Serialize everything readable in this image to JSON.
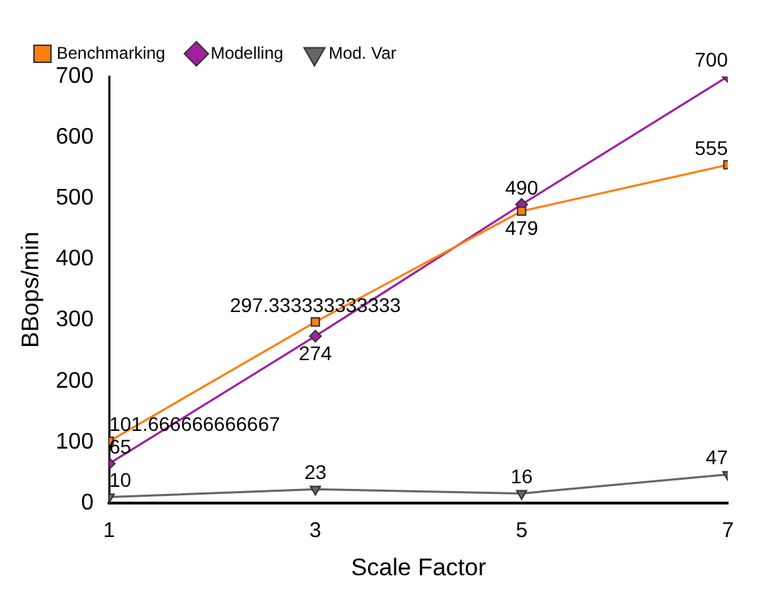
{
  "chart_data": {
    "type": "line",
    "xlabel": "Scale Factor",
    "ylabel": "BBops/min",
    "x": [
      1,
      3,
      5,
      7
    ],
    "xlim": [
      1,
      7
    ],
    "xticks": [
      1,
      3,
      5,
      7
    ],
    "ylim": [
      0,
      700
    ],
    "yticks": [
      0,
      100,
      200,
      300,
      400,
      500,
      600,
      700
    ],
    "series": [
      {
        "name": "Benchmarking",
        "color": "#ff7f0e",
        "marker": "square",
        "values": [
          101.666666666667,
          297.333333333333,
          479,
          555
        ]
      },
      {
        "name": "Modelling",
        "color": "#a020a0",
        "marker": "diamond",
        "values": [
          65,
          274,
          490,
          700
        ]
      },
      {
        "name": "Mod. Var",
        "color": "#666666",
        "marker": "triangle",
        "values": [
          10,
          23,
          16,
          47
        ]
      }
    ],
    "data_labels": true,
    "legend": "top left",
    "grid": false
  }
}
